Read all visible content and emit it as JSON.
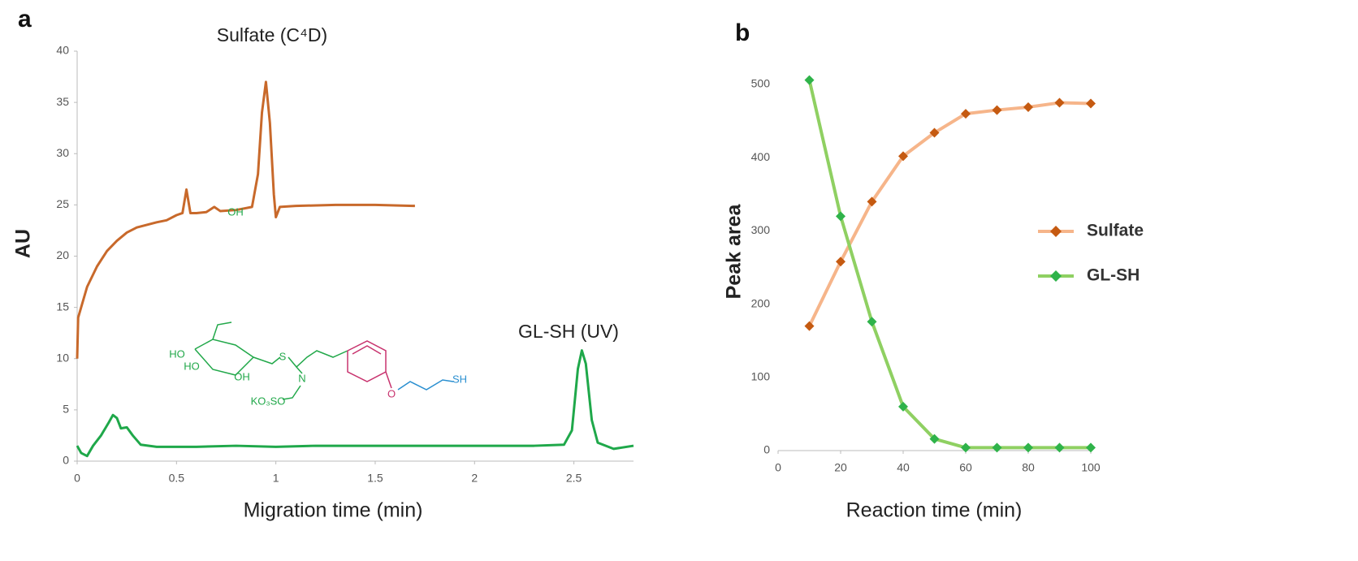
{
  "chart_data": [
    {
      "type": "line",
      "panel_label": "a",
      "x_label": "Migration time (min)",
      "y_label": "AU",
      "xlim": [
        0,
        2.8
      ],
      "xticks": [
        0,
        0.5,
        1,
        1.5,
        2,
        2.5
      ],
      "ylim": [
        0,
        40
      ],
      "yticks": [
        0,
        5,
        10,
        15,
        20,
        25,
        30,
        35,
        40
      ],
      "annotations": [
        "Sulfate (C⁴D)",
        "GL-SH (UV)"
      ],
      "structure_labels": [
        "OH",
        "HO",
        "HO",
        "OH",
        "S",
        "N",
        "KO₃SO",
        "O",
        "SH"
      ],
      "series": [
        {
          "name": "Sulfate",
          "color": "#c8692b",
          "x": [
            0,
            0.005,
            0.02,
            0.05,
            0.1,
            0.15,
            0.2,
            0.25,
            0.3,
            0.4,
            0.45,
            0.5,
            0.53,
            0.55,
            0.57,
            0.6,
            0.65,
            0.69,
            0.72,
            0.8,
            0.88,
            0.91,
            0.93,
            0.95,
            0.97,
            0.99,
            1.0,
            1.02,
            1.1,
            1.3,
            1.5,
            1.7
          ],
          "values": [
            10,
            14,
            15,
            17,
            19,
            20.5,
            21.5,
            22.3,
            22.8,
            23.3,
            23.5,
            24,
            24.2,
            26.5,
            24.2,
            24.2,
            24.3,
            24.8,
            24.4,
            24.5,
            24.8,
            28,
            34,
            37,
            33,
            26,
            23.8,
            24.8,
            24.9,
            25,
            25,
            24.9
          ]
        },
        {
          "name": "GL-SH",
          "color": "#1fa84a",
          "x": [
            0,
            0.02,
            0.05,
            0.08,
            0.12,
            0.16,
            0.18,
            0.2,
            0.22,
            0.25,
            0.28,
            0.32,
            0.4,
            0.6,
            0.8,
            1.0,
            1.2,
            1.5,
            1.8,
            2.0,
            2.3,
            2.45,
            2.49,
            2.52,
            2.54,
            2.56,
            2.59,
            2.62,
            2.7,
            2.8
          ],
          "values": [
            1.5,
            0.8,
            0.5,
            1.5,
            2.5,
            3.8,
            4.5,
            4.2,
            3.2,
            3.3,
            2.5,
            1.6,
            1.4,
            1.4,
            1.5,
            1.4,
            1.5,
            1.5,
            1.5,
            1.5,
            1.5,
            1.6,
            3,
            9,
            10.8,
            9.5,
            4,
            1.8,
            1.2,
            1.5
          ]
        }
      ]
    },
    {
      "type": "line",
      "panel_label": "b",
      "x_label": "Reaction time (min)",
      "y_label": "Peak area",
      "xlim": [
        0,
        100
      ],
      "xticks": [
        0,
        20,
        40,
        60,
        80,
        100
      ],
      "ylim": [
        0,
        500
      ],
      "yticks": [
        0,
        100,
        200,
        300,
        400,
        500
      ],
      "legend": "right",
      "series": [
        {
          "name": "Sulfate",
          "color": "#f6b58a",
          "marker_color": "#c55a11",
          "x": [
            10,
            20,
            30,
            40,
            50,
            60,
            70,
            80,
            90,
            100
          ],
          "values": [
            170,
            258,
            340,
            402,
            434,
            460,
            465,
            469,
            475,
            474
          ]
        },
        {
          "name": "GL-SH",
          "color": "#8fd062",
          "marker_color": "#2fb34a",
          "x": [
            10,
            20,
            30,
            40,
            50,
            60,
            70,
            80,
            90,
            100
          ],
          "values": [
            506,
            320,
            176,
            60,
            16,
            4,
            4,
            4,
            4,
            4
          ]
        }
      ]
    }
  ]
}
